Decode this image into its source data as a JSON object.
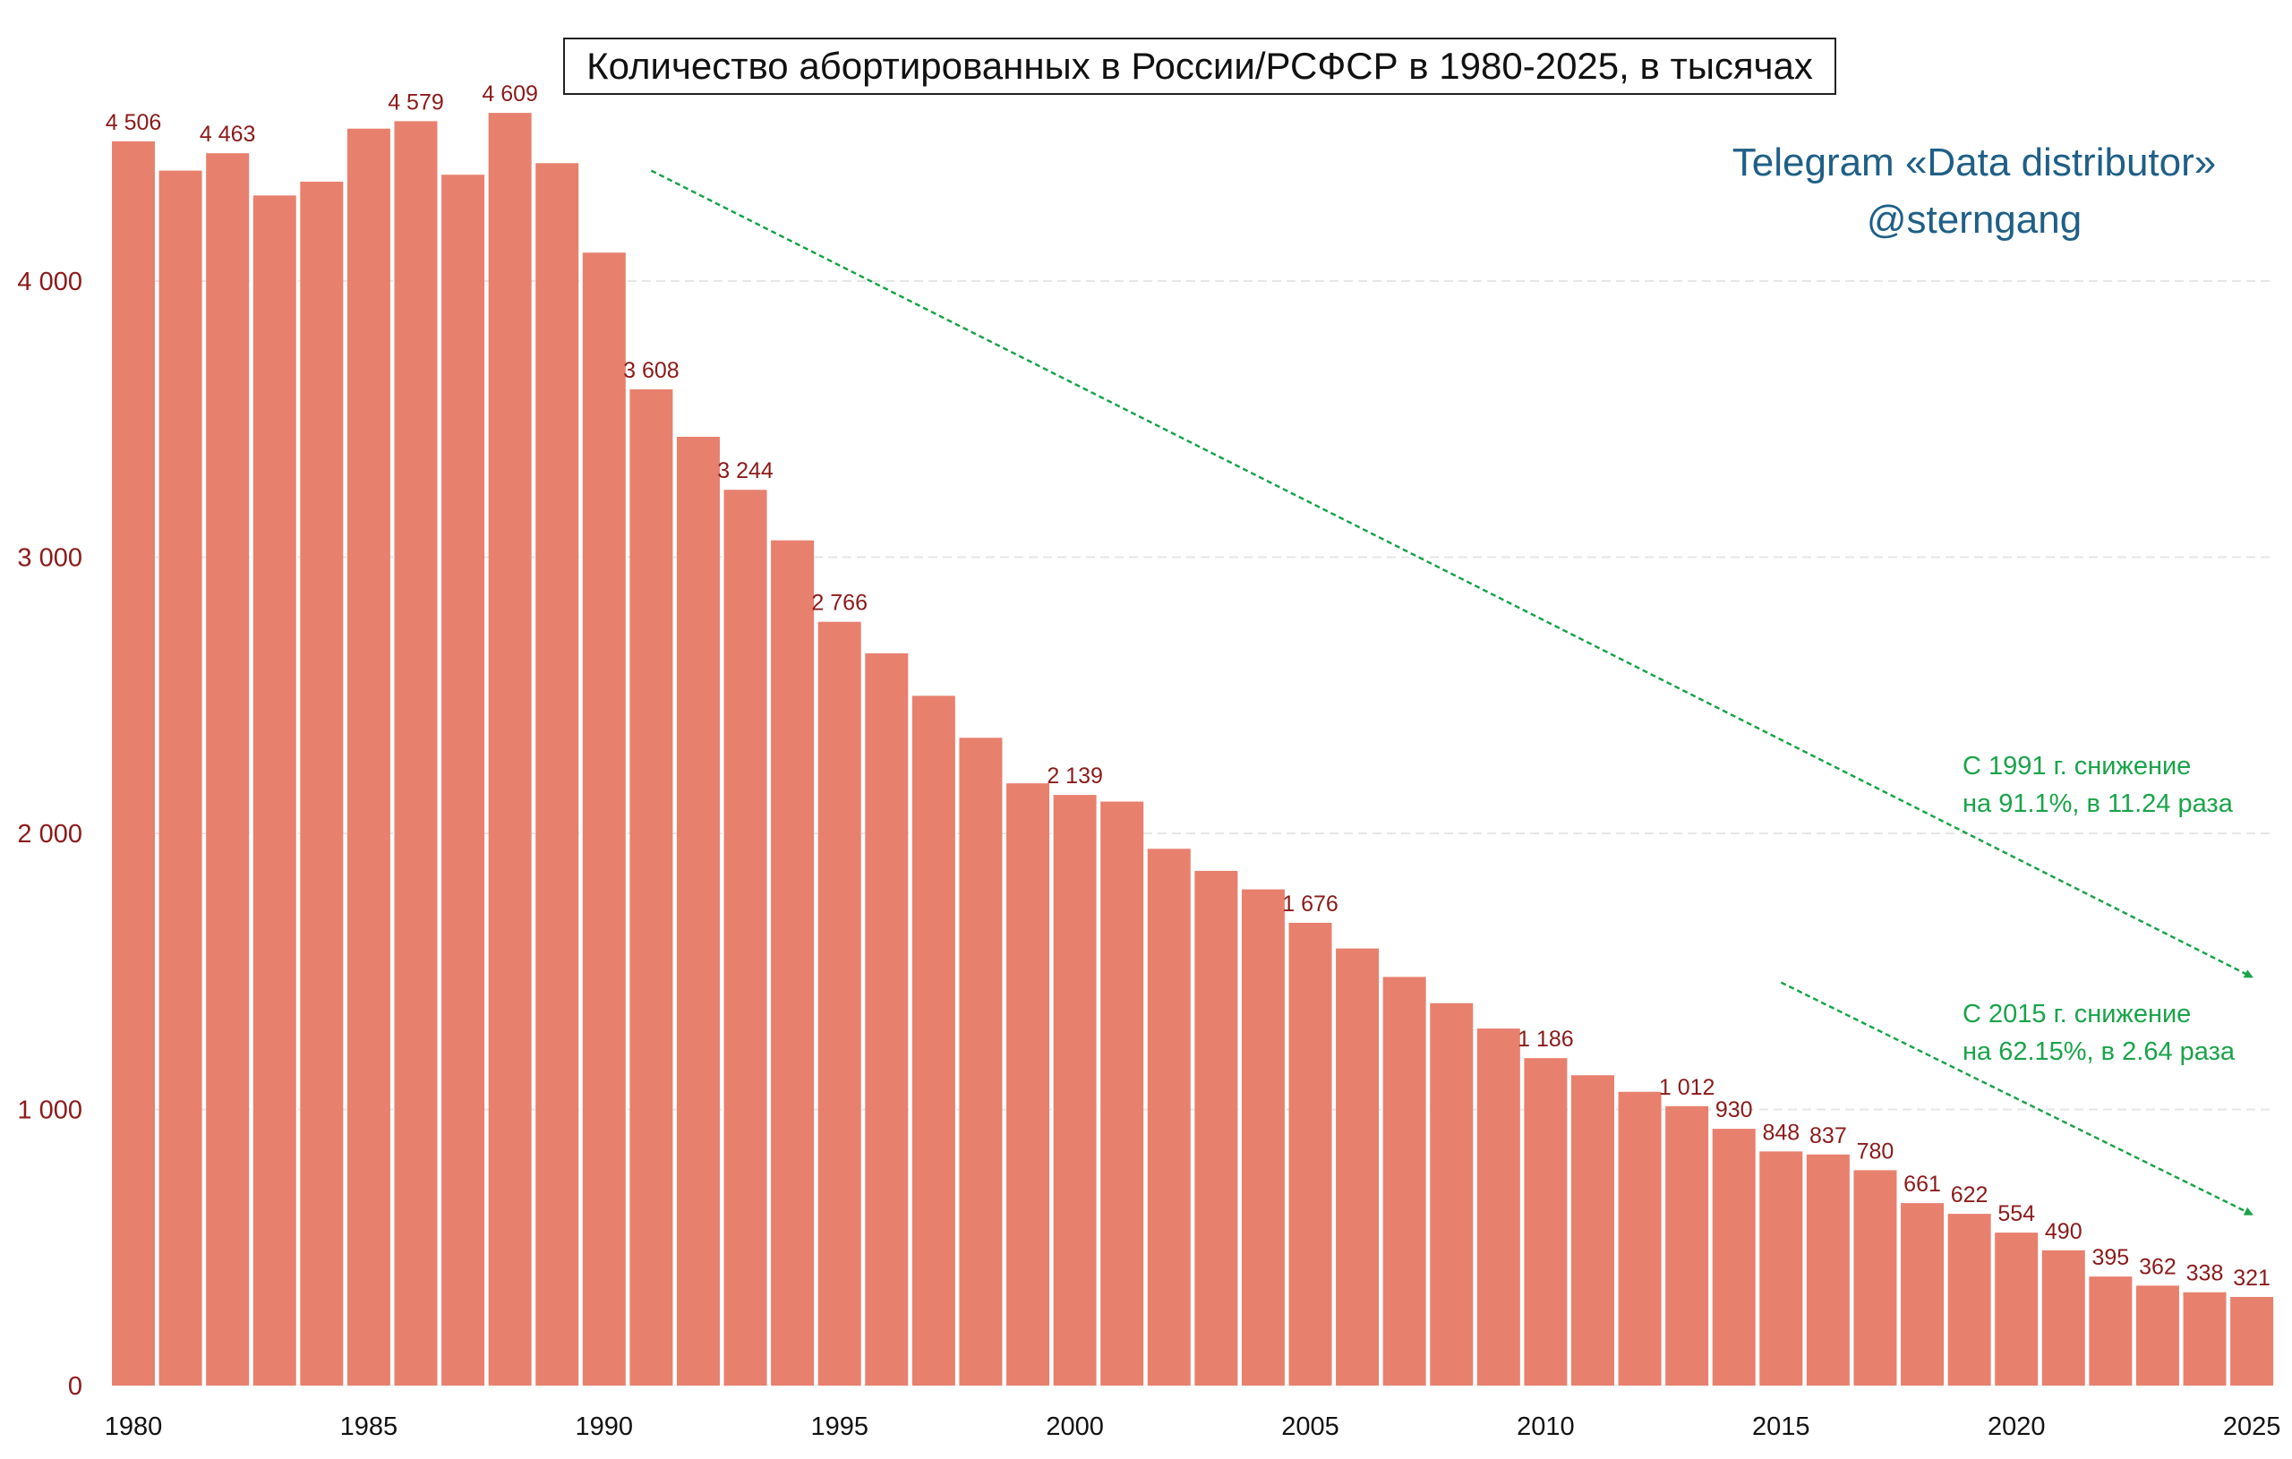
{
  "chart_data": {
    "type": "bar",
    "title": "Количество абортированных в России/РСФСР в 1980-2025, в тысячах",
    "categories": [
      1980,
      1981,
      1982,
      1983,
      1984,
      1985,
      1986,
      1987,
      1988,
      1989,
      1990,
      1991,
      1992,
      1993,
      1994,
      1995,
      1996,
      1997,
      1998,
      1999,
      2000,
      2001,
      2002,
      2003,
      2004,
      2005,
      2006,
      2007,
      2008,
      2009,
      2010,
      2011,
      2012,
      2013,
      2014,
      2015,
      2016,
      2017,
      2018,
      2019,
      2020,
      2021,
      2022,
      2023,
      2024,
      2025
    ],
    "values": [
      4506,
      4400,
      4463,
      4310,
      4360,
      4552,
      4579,
      4385,
      4609,
      4427,
      4103,
      3608,
      3436,
      3244,
      3061,
      2766,
      2652,
      2498,
      2346,
      2181,
      2139,
      2115,
      1944,
      1864,
      1797,
      1676,
      1583,
      1480,
      1385,
      1293,
      1186,
      1124,
      1064,
      1012,
      930,
      848,
      837,
      780,
      661,
      622,
      554,
      490,
      395,
      362,
      338,
      321
    ],
    "labels": {
      "1980": "4 506",
      "1982": "4 463",
      "1986": "4 579",
      "1988": "4 609",
      "1991": "3 608",
      "1993": "3 244",
      "1995": "2 766",
      "2000": "2 139",
      "2005": "1 676",
      "2010": "1 186",
      "2013": "1 012",
      "2014": "930",
      "2015": "848",
      "2016": "837",
      "2017": "780",
      "2018": "661",
      "2019": "622",
      "2020": "554",
      "2021": "490",
      "2022": "395",
      "2023": "362",
      "2024": "338",
      "2025": "321"
    },
    "x_tick_labels": [
      "1980",
      "1985",
      "1990",
      "1995",
      "2000",
      "2005",
      "2010",
      "2015",
      "2020",
      "2025"
    ],
    "y_ticks": [
      0,
      1000,
      2000,
      3000,
      4000
    ],
    "y_tick_labels": [
      "0",
      "1 000",
      "2 000",
      "3 000",
      "4 000"
    ],
    "ylim": [
      0,
      4800
    ],
    "grid": "horizontal dashed",
    "colors": {
      "bar": "#e8806e",
      "label": "#8b1a1a",
      "tick_y": "#8b1a1a",
      "tick_x": "#111111",
      "arrow": "#1aa34a",
      "grid": "#e6e6e6"
    },
    "trend_arrows": [
      {
        "from": {
          "x": 1991,
          "y": 4400
        },
        "to": {
          "x": 2025,
          "y": 1480
        }
      },
      {
        "from": {
          "x": 2015,
          "y": 1460
        },
        "to": {
          "x": 2025,
          "y": 620
        }
      }
    ]
  },
  "watermark": {
    "line1": "Telegram «Data distributor»",
    "line2": "@sterngang"
  },
  "annotations": [
    {
      "line1": "С 1991 г. снижение",
      "line2": "на 91.1%, в 11.24 раза"
    },
    {
      "line1": "С 2015 г. снижение",
      "line2": "на 62.15%, в 2.64 раза"
    }
  ]
}
